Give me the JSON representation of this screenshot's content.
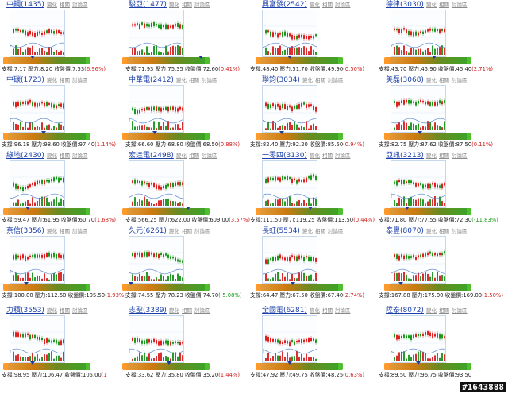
{
  "labels": {
    "sub1": "變化",
    "sub2": "相關",
    "sub3": "討論區",
    "support": "支撐",
    "pressure": "壓力",
    "close": "收盤價"
  },
  "badge": "#1643888",
  "stocks": [
    {
      "name": "中鋼",
      "code": "1435",
      "support": "7.17",
      "pressure": "8.20",
      "close": "7.53",
      "change": "6.96%",
      "neg": false
    },
    {
      "name": "駿亞",
      "code": "1477",
      "support": "71.93",
      "pressure": "75.35",
      "close": "72.60",
      "change": "0.41%",
      "neg": false
    },
    {
      "name": "興富發",
      "code": "2542",
      "support": "48.40",
      "pressure": "51.70",
      "close": "49.90",
      "change": "0.50%",
      "neg": false
    },
    {
      "name": "德律",
      "code": "3030",
      "support": "43.70",
      "pressure": "45.90",
      "close": "45.40",
      "change": "2.71%",
      "neg": false
    },
    {
      "name": "中碳",
      "code": "1723",
      "support": "96.18",
      "pressure": "98.60",
      "close": "97.40",
      "change": "1.14%",
      "neg": false
    },
    {
      "name": "中華電",
      "code": "2412",
      "support": "66.60",
      "pressure": "68.80",
      "close": "68.50",
      "change": "0.88%",
      "neg": false
    },
    {
      "name": "聯鈞",
      "code": "3034",
      "support": "82.40",
      "pressure": "92.20",
      "close": "85.50",
      "change": "0.94%",
      "neg": false
    },
    {
      "name": "美磊",
      "code": "3068",
      "support": "82.75",
      "pressure": "87.62",
      "close": "87.50",
      "change": "0.11%",
      "neg": false
    },
    {
      "name": "綠地",
      "code": "2430",
      "support": "59.47",
      "pressure": "61.95",
      "close": "60.70",
      "change": "1.68%",
      "neg": false
    },
    {
      "name": "宏達電",
      "code": "2498",
      "support": "566.25",
      "pressure": "622.00",
      "close": "609.00",
      "change": "3.57%",
      "neg": false
    },
    {
      "name": "一零四",
      "code": "3130",
      "support": "111.50",
      "pressure": "119.25",
      "close": "113.50",
      "change": "0.44%",
      "neg": false
    },
    {
      "name": "亞訊",
      "code": "3213",
      "support": "71.80",
      "pressure": "77.55",
      "close": "72.30",
      "change": "-11.83%",
      "neg": true
    },
    {
      "name": "奈信",
      "code": "3356",
      "support": "100.00",
      "pressure": "112.50",
      "close": "105.50",
      "change": "1.93%",
      "neg": false
    },
    {
      "name": "久元",
      "code": "6261",
      "support": "74.55",
      "pressure": "78.23",
      "close": "74.70",
      "change": "-5.08%",
      "neg": true
    },
    {
      "name": "長虹",
      "code": "5534",
      "support": "64.47",
      "pressure": "67.50",
      "close": "67.40",
      "change": "2.74%",
      "neg": false
    },
    {
      "name": "泰豐",
      "code": "8070",
      "support": "167.88",
      "pressure": "175.00",
      "close": "169.00",
      "change": "1.50%",
      "neg": false
    },
    {
      "name": "力積",
      "code": "3553",
      "support": "98.95",
      "pressure": "106.47",
      "close": "105.00",
      "change": "1",
      "neg": false
    },
    {
      "name": "志聖",
      "code": "3389",
      "support": "33.62",
      "pressure": "35.80",
      "close": "35.20",
      "change": "1.44%",
      "neg": false
    },
    {
      "name": "全國電",
      "code": "6281",
      "support": "47.92",
      "pressure": "49.75",
      "close": "48.25",
      "change": "0.63%",
      "neg": false
    },
    {
      "name": "陞泰",
      "code": "8072",
      "support": "89.50",
      "pressure": "96.75",
      "close": "93.50",
      "change": "",
      "neg": false
    }
  ]
}
